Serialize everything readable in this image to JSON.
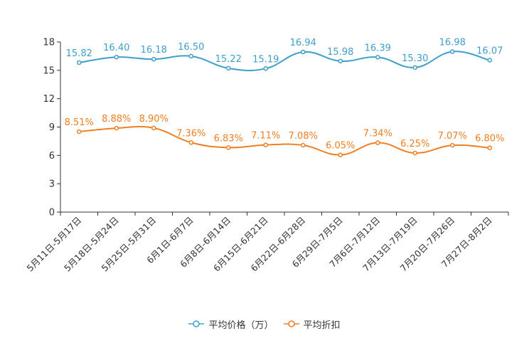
{
  "chart_data": {
    "type": "line",
    "title": "",
    "xlabel": "",
    "ylabel": "",
    "ylim": [
      0,
      18
    ],
    "yticks": [
      0,
      3,
      6,
      9,
      12,
      15,
      18
    ],
    "grid": false,
    "legend_position": "bottom-center",
    "categories": [
      "5月11日-5月17日",
      "5月18日-5月24日",
      "5月25日-5月31日",
      "6月1日-6月7日",
      "6月8日-6月14日",
      "6月15日-6月21日",
      "6月22日-6月28日",
      "6月29日-7月5日",
      "7月6日-7月12日",
      "7月13日-7月19日",
      "7月20日-7月26日",
      "7月27日-8月2日"
    ],
    "series": [
      {
        "name": "平均价格（万）",
        "color": "#3e9fcb",
        "values": [
          15.82,
          16.4,
          16.18,
          16.5,
          15.22,
          15.19,
          16.94,
          15.98,
          16.39,
          15.3,
          16.98,
          16.07
        ],
        "labels": [
          "15.82",
          "16.40",
          "16.18",
          "16.50",
          "15.22",
          "15.19",
          "16.94",
          "15.98",
          "16.39",
          "15.30",
          "16.98",
          "16.07"
        ]
      },
      {
        "name": "平均折扣",
        "color": "#f07f22",
        "values": [
          8.51,
          8.88,
          8.9,
          7.36,
          6.83,
          7.11,
          7.08,
          6.05,
          7.34,
          6.25,
          7.07,
          6.8
        ],
        "labels": [
          "8.51%",
          "8.88%",
          "8.90%",
          "7.36%",
          "6.83%",
          "7.11%",
          "7.08%",
          "6.05%",
          "7.34%",
          "6.25%",
          "7.07%",
          "6.80%"
        ]
      }
    ]
  }
}
